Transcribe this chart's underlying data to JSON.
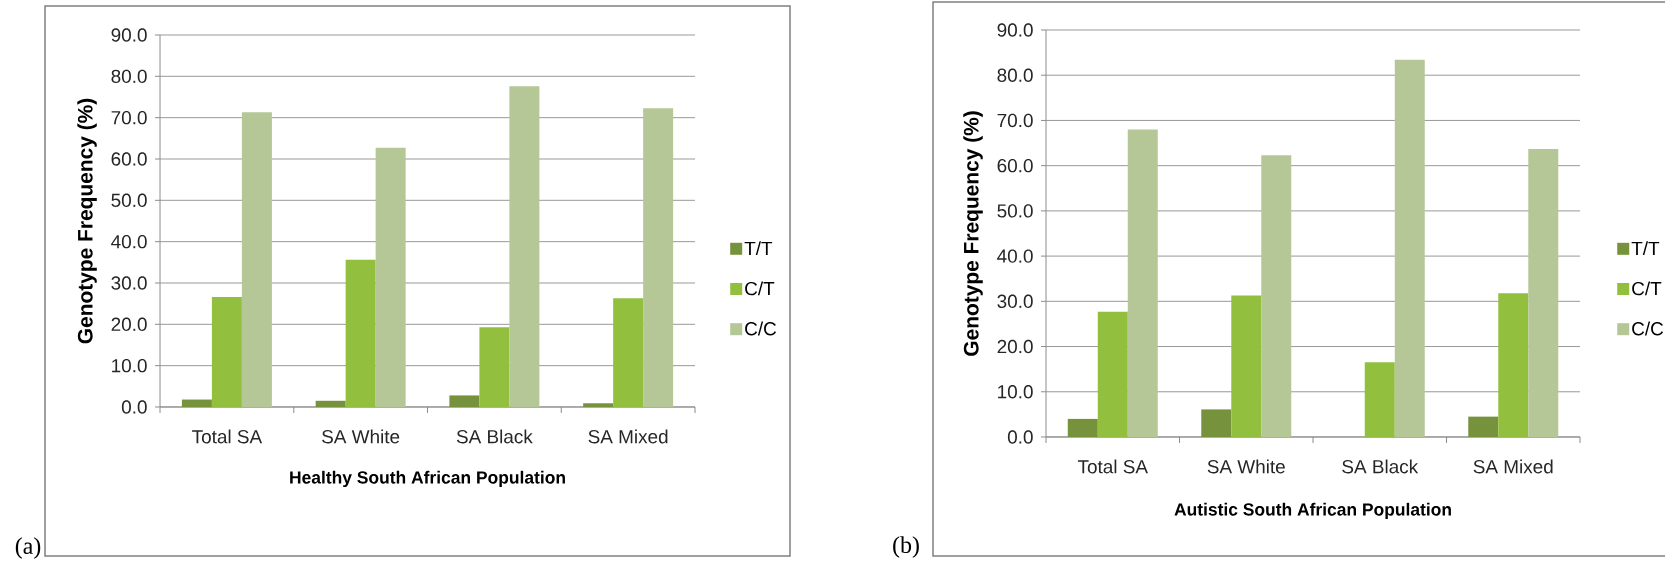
{
  "chart_data": [
    {
      "type": "bar",
      "xlabel": "Healthy South African Population",
      "ylabel": "Genotype Frequency (%)",
      "categories": [
        "Total SA",
        "SA White",
        "SA Black",
        "SA Mixed"
      ],
      "series": [
        {
          "name": "T/T",
          "color": "#76923c",
          "values": [
            1.8,
            1.5,
            2.8,
            0.9
          ]
        },
        {
          "name": "C/T",
          "color": "#92c03e",
          "values": [
            26.6,
            35.6,
            19.3,
            26.3
          ]
        },
        {
          "name": "C/C",
          "color": "#b5c797",
          "values": [
            71.3,
            62.7,
            77.6,
            72.3
          ]
        }
      ],
      "ylim": [
        0,
        90
      ],
      "yticks": [
        {
          "value": 0,
          "label": "0.0"
        },
        {
          "value": 10,
          "label": "10.0"
        },
        {
          "value": 20,
          "label": "20.0"
        },
        {
          "value": 30,
          "label": "30.0"
        },
        {
          "value": 40,
          "label": "40.0"
        },
        {
          "value": 50,
          "label": "50.0"
        },
        {
          "value": 60,
          "label": "60.0"
        },
        {
          "value": 70,
          "label": "70.0"
        },
        {
          "value": 80,
          "label": "80.0"
        },
        {
          "value": 90,
          "label": "90.0"
        }
      ],
      "grid": "y",
      "legend": "right",
      "annotations": [
        "(a)"
      ]
    },
    {
      "type": "bar",
      "xlabel": "Autistic South  African Population",
      "ylabel": "Genotype Frequency (%)",
      "categories": [
        "Total SA",
        "SA White",
        "SA Black",
        "SA Mixed"
      ],
      "series": [
        {
          "name": "T/T",
          "color": "#76923c",
          "values": [
            4.0,
            6.1,
            0,
            4.5
          ]
        },
        {
          "name": "C/T",
          "color": "#92c03e",
          "values": [
            27.7,
            31.3,
            16.5,
            31.8
          ]
        },
        {
          "name": "C/C",
          "color": "#b5c797",
          "values": [
            68.0,
            62.3,
            83.4,
            63.7
          ]
        }
      ],
      "ylim": [
        0,
        90
      ],
      "yticks": [
        {
          "value": 0,
          "label": "0.0"
        },
        {
          "value": 10,
          "label": "10.0"
        },
        {
          "value": 20,
          "label": "20.0"
        },
        {
          "value": 30,
          "label": "30.0"
        },
        {
          "value": 40,
          "label": "40.0"
        },
        {
          "value": 50,
          "label": "50.0"
        },
        {
          "value": 60,
          "label": "60.0"
        },
        {
          "value": 70,
          "label": "70.0"
        },
        {
          "value": 80,
          "label": "80.0"
        },
        {
          "value": 90,
          "label": "90.0"
        }
      ],
      "grid": "y",
      "legend": "right",
      "annotations": [
        "(b)"
      ]
    }
  ]
}
